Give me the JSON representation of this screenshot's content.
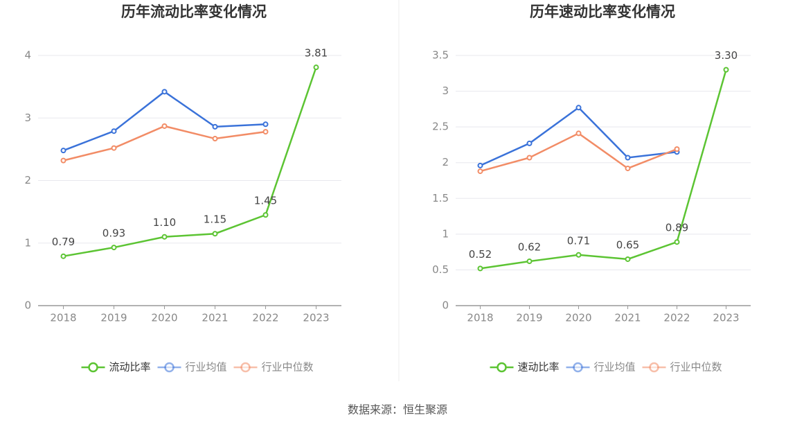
{
  "chart_data": [
    {
      "type": "line",
      "title": "历年流动比率变化情况",
      "categories": [
        "2018",
        "2019",
        "2020",
        "2021",
        "2022",
        "2023"
      ],
      "series": [
        {
          "name": "流动比率",
          "color": "#5cc433",
          "values": [
            0.79,
            0.93,
            1.1,
            1.15,
            1.45,
            3.81
          ],
          "value_labels": [
            "0.79",
            "0.93",
            "1.10",
            "1.15",
            "1.45",
            "3.81"
          ]
        },
        {
          "name": "行业均值",
          "color": "#3a72d9",
          "values": [
            2.48,
            2.79,
            3.42,
            2.86,
            2.9,
            null
          ]
        },
        {
          "name": "行业中位数",
          "color": "#f28c66",
          "values": [
            2.32,
            2.52,
            2.87,
            2.67,
            2.78,
            null
          ]
        }
      ],
      "ylim": [
        0,
        4
      ],
      "yticks": [
        0,
        1,
        2,
        3,
        4
      ],
      "grid": true,
      "legend": "bottom"
    },
    {
      "type": "line",
      "title": "历年速动比率变化情况",
      "categories": [
        "2018",
        "2019",
        "2020",
        "2021",
        "2022",
        "2023"
      ],
      "series": [
        {
          "name": "速动比率",
          "color": "#5cc433",
          "values": [
            0.52,
            0.62,
            0.71,
            0.65,
            0.89,
            3.3
          ],
          "value_labels": [
            "0.52",
            "0.62",
            "0.71",
            "0.65",
            "0.89",
            "3.30"
          ]
        },
        {
          "name": "行业均值",
          "color": "#3a72d9",
          "values": [
            1.96,
            2.27,
            2.77,
            2.07,
            2.15,
            null
          ]
        },
        {
          "name": "行业中位数",
          "color": "#f28c66",
          "values": [
            1.88,
            2.07,
            2.41,
            1.92,
            2.19,
            null
          ]
        }
      ],
      "ylim": [
        0,
        3.5
      ],
      "yticks": [
        0,
        0.5,
        1,
        1.5,
        2,
        2.5,
        3,
        3.5
      ],
      "grid": true,
      "legend": "bottom"
    }
  ],
  "source": "数据来源：恒生聚源"
}
